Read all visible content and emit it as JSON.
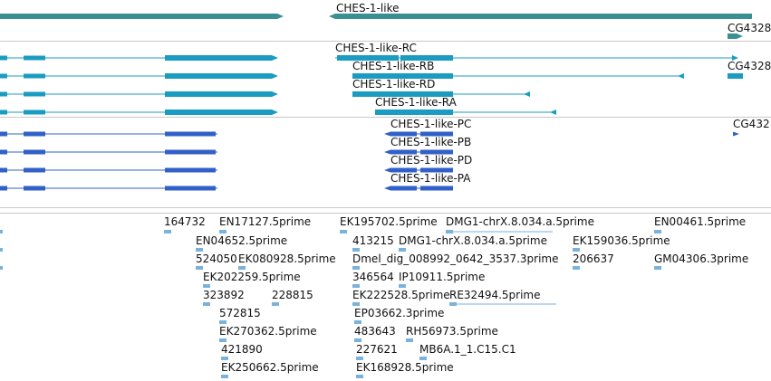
{
  "colors": {
    "gene": "#3a8f94",
    "transcript": "#1a9cc0",
    "protein": "#3060c8",
    "est": "#7ab2dc",
    "separator": "#c8c8c8"
  },
  "tracks": {
    "gene": {
      "icon": "gene-glyph",
      "labels": [
        "CHES-1-like",
        "CG4328"
      ]
    },
    "transcripts": {
      "icon": "transcript-glyph",
      "labels": [
        "CHES-1-like-RC",
        "CHES-1-like-RB",
        "CG4328",
        "CHES-1-like-RD",
        "CHES-1-like-RA"
      ]
    },
    "proteins": {
      "icon": "protein-glyph",
      "labels": [
        "CHES-1-like-PC",
        "CG432",
        "CHES-1-like-PB",
        "CHES-1-like-PD",
        "CHES-1-like-PA"
      ]
    },
    "ests": {
      "icon": "est-glyph",
      "labels": [
        "164732",
        "EN17127.5prime",
        "EK195702.5prime",
        "DMG1-chrX.8.034.a.5prime",
        "EN00461.5prime",
        "EN04652.5prime",
        "413215",
        "DMG1-chrX.8.034.a.5prime",
        "EK159036.5prime",
        "524050",
        "EK080928.5prime",
        "Dmel_dig_008992_0642_3537.3prime",
        "206637",
        "GM04306.3prime",
        "EK202259.5prime",
        "346564",
        "IP10911.5prime",
        "323892",
        "228815",
        "EK222528.5prime",
        "RE32494.5prime",
        "572815",
        "EP03662.3prime",
        "EK270362.5prime",
        "483643",
        "RH56973.5prime",
        "421890",
        "227621",
        "MB6A.1_1.C15.C1",
        "EK250662.5prime",
        "EK168928.5prime"
      ]
    }
  }
}
